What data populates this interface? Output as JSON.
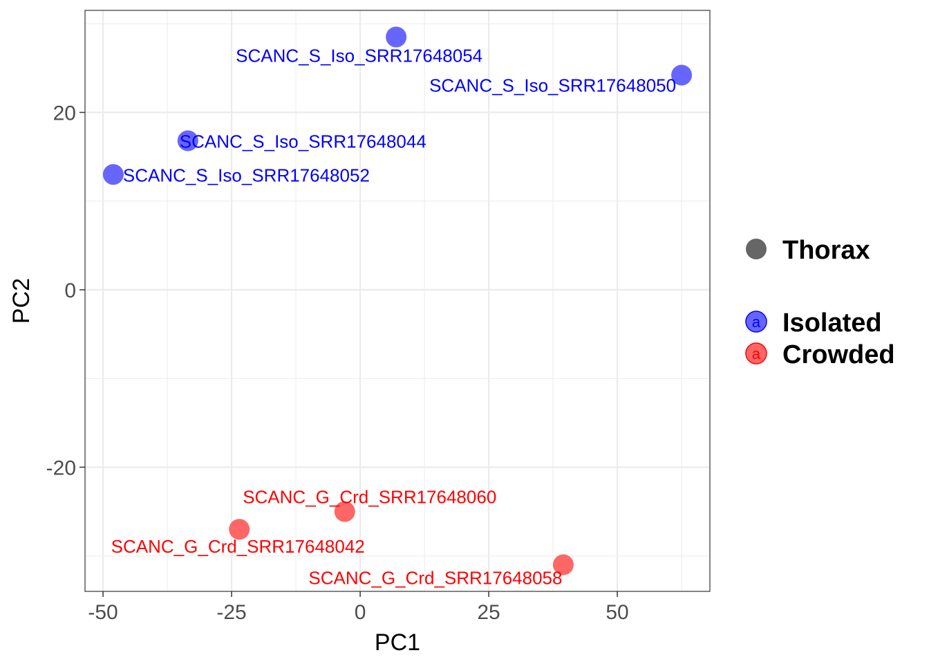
{
  "chart_data": {
    "type": "scatter",
    "xlabel": "PC1",
    "ylabel": "PC2",
    "xlim": [
      -53.5,
      68
    ],
    "ylim": [
      -34,
      31.5
    ],
    "x_ticks": [
      -50,
      -25,
      0,
      25,
      50
    ],
    "x_tick_labels": [
      "-50",
      "-25",
      "0",
      "25",
      "50"
    ],
    "y_ticks": [
      -20,
      0,
      20
    ],
    "y_tick_labels": [
      "-20",
      "0",
      "20"
    ],
    "grid": true,
    "legend_position": "right",
    "series": [
      {
        "name": "Isolated",
        "color": "#6666ff",
        "label_color": "#0000ff",
        "points": [
          {
            "x": 7,
            "y": 28.5,
            "label": "SCANC_S_Iso_SRR17648054"
          },
          {
            "x": 62.5,
            "y": 24.2,
            "label": "SCANC_S_Iso_SRR17648050"
          },
          {
            "x": -33.5,
            "y": 16.8,
            "label": "SCANC_S_Iso_SRR17648044"
          },
          {
            "x": -48,
            "y": 13,
            "label": "SCANC_S_Iso_SRR17648052"
          }
        ]
      },
      {
        "name": "Crowded",
        "color": "#ff6666",
        "label_color": "#ff0000",
        "points": [
          {
            "x": -3,
            "y": -25,
            "label": "SCANC_G_Crd_SRR17648060"
          },
          {
            "x": -23.5,
            "y": -27,
            "label": "SCANC_G_Crd_SRR17648042"
          },
          {
            "x": 39.5,
            "y": -31,
            "label": "SCANC_G_Crd_SRR17648058"
          }
        ]
      }
    ]
  },
  "legend": {
    "shape_title": "Thorax",
    "shape_color": "#666666",
    "key_letter": "a",
    "entries": [
      {
        "label": "Isolated",
        "color": "#0000ff"
      },
      {
        "label": "Crowded",
        "color": "#ff0000"
      }
    ]
  }
}
